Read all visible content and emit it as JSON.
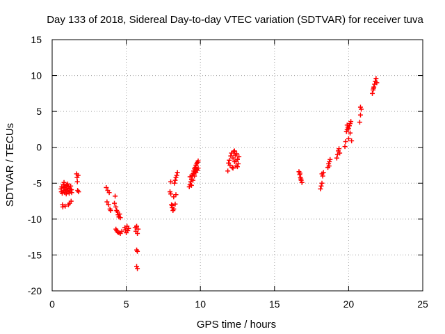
{
  "chart_data": {
    "type": "scatter",
    "title": "Day 133 of 2018, Sidereal Day-to-day VTEC variation (SDTVAR) for receiver tuva",
    "xlabel": "GPS time / hours",
    "ylabel": "SDTVAR / TECUs",
    "xlim": [
      0,
      25
    ],
    "ylim": [
      -20,
      15
    ],
    "xticks": [
      0,
      5,
      10,
      15,
      20,
      25
    ],
    "yticks": [
      -20,
      -15,
      -10,
      -5,
      0,
      5,
      10,
      15
    ],
    "grid": true,
    "marker": "plus",
    "color": "#ff0000",
    "series": [
      {
        "name": "SDTVAR",
        "points": [
          [
            0.6,
            -5.8
          ],
          [
            0.62,
            -6.2
          ],
          [
            0.65,
            -5.5
          ],
          [
            0.68,
            -6.4
          ],
          [
            0.7,
            -8.0
          ],
          [
            0.72,
            -8.3
          ],
          [
            0.75,
            -5.2
          ],
          [
            0.78,
            -6.0
          ],
          [
            0.8,
            -4.9
          ],
          [
            0.82,
            -5.6
          ],
          [
            0.85,
            -6.3
          ],
          [
            0.88,
            -8.2
          ],
          [
            0.9,
            -5.4
          ],
          [
            0.92,
            -5.9
          ],
          [
            0.95,
            -6.5
          ],
          [
            0.98,
            -5.3
          ],
          [
            1.0,
            -6.0
          ],
          [
            1.02,
            -5.7
          ],
          [
            1.05,
            -5.1
          ],
          [
            1.08,
            -6.2
          ],
          [
            1.1,
            -8.0
          ],
          [
            1.12,
            -5.5
          ],
          [
            1.15,
            -6.4
          ],
          [
            1.18,
            -7.8
          ],
          [
            1.2,
            -5.8
          ],
          [
            1.22,
            -6.1
          ],
          [
            1.25,
            -5.4
          ],
          [
            1.28,
            -7.5
          ],
          [
            1.3,
            -5.9
          ],
          [
            1.32,
            -6.3
          ],
          [
            1.65,
            -3.7
          ],
          [
            1.68,
            -4.2
          ],
          [
            1.7,
            -4.8
          ],
          [
            1.72,
            -6.0
          ],
          [
            1.75,
            -3.9
          ],
          [
            1.78,
            -6.2
          ],
          [
            3.65,
            -5.6
          ],
          [
            3.7,
            -7.6
          ],
          [
            3.75,
            -6.0
          ],
          [
            3.8,
            -8.0
          ],
          [
            3.85,
            -6.3
          ],
          [
            3.9,
            -8.6
          ],
          [
            3.95,
            -8.8
          ],
          [
            4.2,
            -7.8
          ],
          [
            4.25,
            -6.8
          ],
          [
            4.3,
            -8.3
          ],
          [
            4.35,
            -8.8
          ],
          [
            4.4,
            -9.0
          ],
          [
            4.45,
            -9.4
          ],
          [
            4.5,
            -9.7
          ],
          [
            4.55,
            -9.3
          ],
          [
            4.6,
            -9.8
          ],
          [
            4.3,
            -11.4
          ],
          [
            4.35,
            -11.6
          ],
          [
            4.4,
            -11.8
          ],
          [
            4.5,
            -11.9
          ],
          [
            4.6,
            -12.0
          ],
          [
            4.7,
            -11.7
          ],
          [
            4.9,
            -11.2
          ],
          [
            4.95,
            -11.5
          ],
          [
            5.0,
            -11.9
          ],
          [
            5.05,
            -11.0
          ],
          [
            5.1,
            -11.6
          ],
          [
            5.15,
            -11.3
          ],
          [
            5.6,
            -11.2
          ],
          [
            5.65,
            -11.7
          ],
          [
            5.7,
            -11.0
          ],
          [
            5.75,
            -12.0
          ],
          [
            5.8,
            -11.4
          ],
          [
            5.7,
            -14.3
          ],
          [
            5.75,
            -14.5
          ],
          [
            5.7,
            -16.6
          ],
          [
            5.75,
            -16.9
          ],
          [
            7.95,
            -6.2
          ],
          [
            8.0,
            -6.5
          ],
          [
            8.05,
            -8.0
          ],
          [
            8.1,
            -8.4
          ],
          [
            8.15,
            -8.8
          ],
          [
            8.2,
            -6.9
          ],
          [
            8.25,
            -5.0
          ],
          [
            8.3,
            -4.6
          ],
          [
            8.35,
            -4.2
          ],
          [
            8.4,
            -3.9
          ],
          [
            8.45,
            -3.5
          ],
          [
            8.0,
            -4.8
          ],
          [
            8.1,
            -8.1
          ],
          [
            8.2,
            -8.6
          ],
          [
            8.3,
            -7.9
          ],
          [
            8.35,
            -6.6
          ],
          [
            9.25,
            -5.5
          ],
          [
            9.3,
            -5.2
          ],
          [
            9.35,
            -4.8
          ],
          [
            9.4,
            -4.5
          ],
          [
            9.45,
            -4.0
          ],
          [
            9.5,
            -3.7
          ],
          [
            9.55,
            -3.3
          ],
          [
            9.6,
            -3.0
          ],
          [
            9.65,
            -2.8
          ],
          [
            9.7,
            -2.5
          ],
          [
            9.75,
            -2.3
          ],
          [
            9.8,
            -2.1
          ],
          [
            9.85,
            -1.9
          ],
          [
            9.4,
            -5.3
          ],
          [
            9.5,
            -4.6
          ],
          [
            9.6,
            -4.0
          ],
          [
            9.7,
            -3.5
          ],
          [
            9.8,
            -3.2
          ],
          [
            9.3,
            -4.1
          ],
          [
            9.45,
            -3.9
          ],
          [
            9.55,
            -3.6
          ],
          [
            9.65,
            -3.4
          ],
          [
            9.75,
            -3.1
          ],
          [
            9.85,
            -2.9
          ],
          [
            11.85,
            -3.3
          ],
          [
            11.9,
            -2.2
          ],
          [
            11.95,
            -1.8
          ],
          [
            12.0,
            -2.5
          ],
          [
            12.05,
            -1.2
          ],
          [
            12.1,
            -0.8
          ],
          [
            12.15,
            -2.8
          ],
          [
            12.2,
            -1.5
          ],
          [
            12.25,
            -0.6
          ],
          [
            12.3,
            -2.0
          ],
          [
            12.35,
            -1.1
          ],
          [
            12.4,
            -2.6
          ],
          [
            12.45,
            -0.9
          ],
          [
            12.5,
            -1.7
          ],
          [
            12.55,
            -2.3
          ],
          [
            12.6,
            -1.3
          ],
          [
            12.2,
            -2.9
          ],
          [
            12.3,
            -0.5
          ],
          [
            12.4,
            -1.9
          ],
          [
            12.5,
            -2.7
          ],
          [
            16.65,
            -3.4
          ],
          [
            16.7,
            -3.8
          ],
          [
            16.75,
            -4.2
          ],
          [
            16.8,
            -4.6
          ],
          [
            16.85,
            -4.9
          ],
          [
            16.72,
            -3.6
          ],
          [
            16.78,
            -4.4
          ],
          [
            18.1,
            -5.8
          ],
          [
            18.15,
            -5.4
          ],
          [
            18.2,
            -5.0
          ],
          [
            18.25,
            -4.0
          ],
          [
            18.3,
            -3.5
          ],
          [
            18.2,
            -3.7
          ],
          [
            18.6,
            -2.8
          ],
          [
            18.65,
            -2.3
          ],
          [
            18.7,
            -2.0
          ],
          [
            18.75,
            -1.7
          ],
          [
            18.68,
            -2.6
          ],
          [
            19.2,
            -1.5
          ],
          [
            19.25,
            -1.0
          ],
          [
            19.3,
            -0.5
          ],
          [
            19.35,
            -0.2
          ],
          [
            19.4,
            -0.8
          ],
          [
            19.75,
            0.1
          ],
          [
            19.8,
            0.8
          ],
          [
            19.85,
            2.2
          ],
          [
            19.9,
            2.5
          ],
          [
            19.95,
            2.8
          ],
          [
            20.0,
            1.2
          ],
          [
            20.05,
            3.0
          ],
          [
            20.1,
            3.3
          ],
          [
            20.15,
            3.6
          ],
          [
            20.2,
            0.9
          ],
          [
            19.9,
            3.1
          ],
          [
            20.0,
            2.6
          ],
          [
            20.1,
            2.0
          ],
          [
            20.75,
            3.5
          ],
          [
            20.8,
            4.5
          ],
          [
            20.85,
            5.3
          ],
          [
            20.8,
            5.6
          ],
          [
            21.6,
            7.5
          ],
          [
            21.65,
            8.0
          ],
          [
            21.7,
            8.4
          ],
          [
            21.75,
            8.8
          ],
          [
            21.8,
            9.2
          ],
          [
            21.85,
            9.6
          ],
          [
            21.9,
            9.0
          ],
          [
            21.68,
            8.2
          ]
        ]
      }
    ]
  }
}
